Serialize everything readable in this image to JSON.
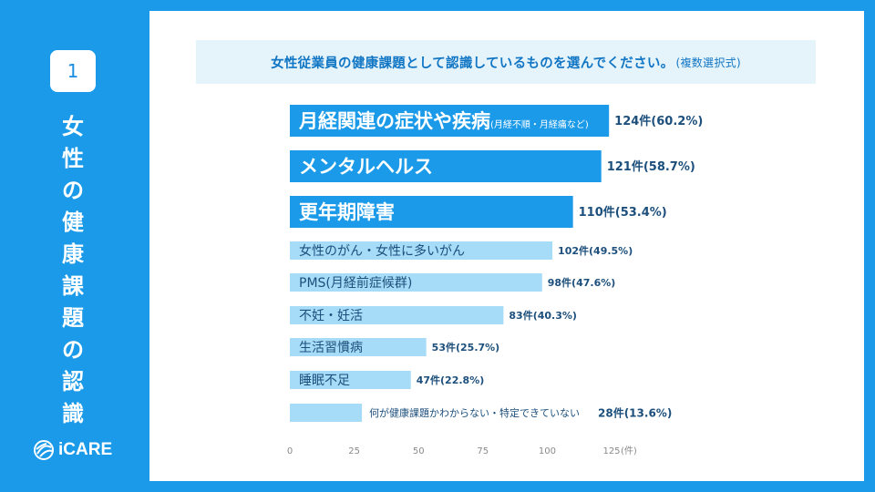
{
  "slide": {
    "number": "1",
    "vertical_title": "女性の健康課題の認識",
    "logo_text": "iCARE"
  },
  "question": {
    "main": "女性従業員の健康課題として認識しているものを選んでください。",
    "note": "(複数選択式)"
  },
  "colors": {
    "background": "#1a9ae8",
    "bar_highlight": "#1a9ae8",
    "bar_light": "#a6dcf7",
    "text_dark": "#1c4f7c",
    "axis_text": "#8a8a8a"
  },
  "chart_data": {
    "type": "bar",
    "orientation": "horizontal",
    "categories": [
      "月経関連の症状や疾病",
      "メンタルヘルス",
      "更年期障害",
      "女性のがん・女性に多いがん",
      "PMS(月経前症候群)",
      "不妊・妊活",
      "生活習慣病",
      "睡眠不足",
      "何が健康課題かわからない・特定できていない"
    ],
    "category_notes": [
      "(月経不順・月経痛など)",
      "",
      "",
      "",
      "",
      "",
      "",
      "",
      ""
    ],
    "values": [
      124,
      121,
      110,
      102,
      98,
      83,
      53,
      47,
      28
    ],
    "value_labels": [
      "124件(60.2%)",
      "121件(58.7%)",
      "110件(53.4%)",
      "102件(49.5%)",
      "98件(47.6%)",
      "83件(40.3%)",
      "53件(25.7%)",
      "47件(22.8%)",
      "28件(13.6%)"
    ],
    "highlighted": [
      true,
      true,
      true,
      false,
      false,
      false,
      false,
      false,
      false
    ],
    "x_ticks": [
      0,
      25,
      50,
      75,
      100,
      125
    ],
    "x_unit": "(件)",
    "xlim": [
      0,
      125
    ]
  }
}
